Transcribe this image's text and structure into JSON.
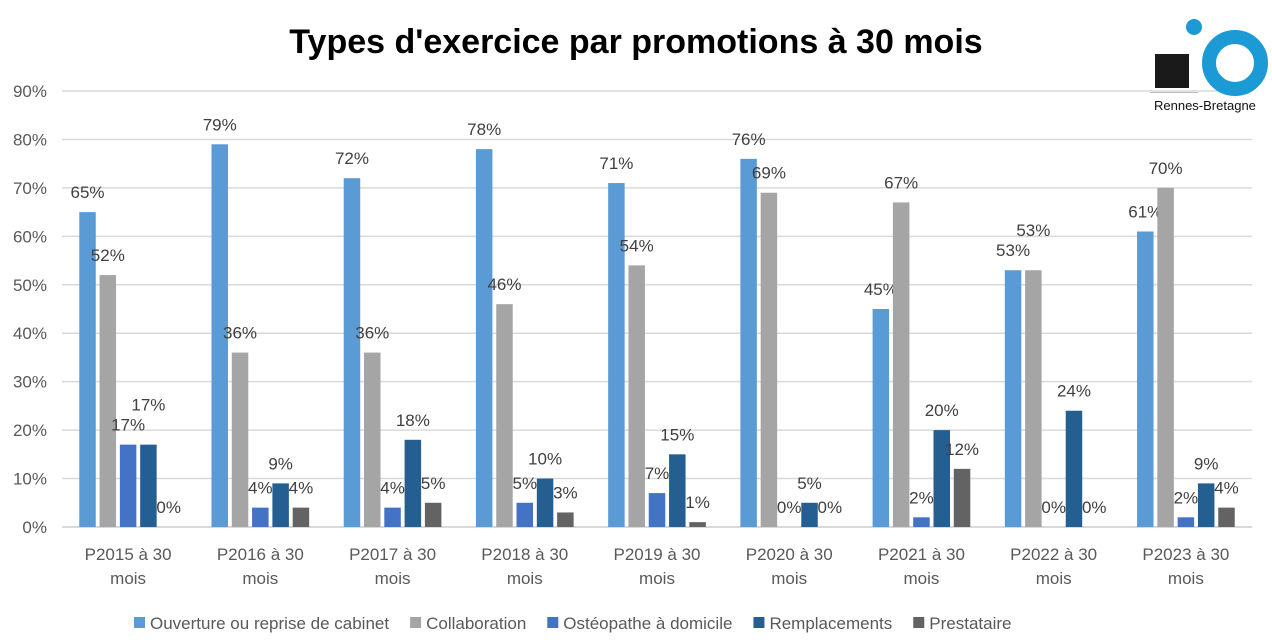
{
  "chart_data": {
    "type": "bar",
    "title": "Types d'exercice par promotions à 30 mois",
    "categories": [
      [
        "P2015 à 30",
        "mois"
      ],
      [
        "P2016 à 30",
        "mois"
      ],
      [
        "P2017 à 30",
        "mois"
      ],
      [
        "P2018 à 30",
        "mois"
      ],
      [
        "P2019 à 30",
        "mois"
      ],
      [
        "P2020 à 30",
        "mois"
      ],
      [
        "P2021 à 30",
        "mois"
      ],
      [
        "P2022 à 30",
        "mois"
      ],
      [
        "P2023 à 30",
        "mois"
      ]
    ],
    "series": [
      {
        "name": "Ouverture ou reprise de cabinet",
        "color": "#5b9bd5",
        "values": [
          65,
          79,
          72,
          78,
          71,
          76,
          45,
          53,
          61
        ]
      },
      {
        "name": "Collaboration",
        "color": "#a5a5a5",
        "values": [
          52,
          36,
          36,
          46,
          54,
          69,
          67,
          53,
          70
        ]
      },
      {
        "name": "Ostéopathe à domicile",
        "color": "#4472c4",
        "values": [
          17,
          4,
          4,
          5,
          7,
          0,
          2,
          0,
          2
        ]
      },
      {
        "name": "Remplacements",
        "color": "#255e91",
        "values": [
          17,
          9,
          18,
          10,
          15,
          5,
          20,
          24,
          9
        ]
      },
      {
        "name": "Prestataire",
        "color": "#636363",
        "values": [
          0,
          4,
          5,
          3,
          1,
          0,
          12,
          0,
          4
        ]
      }
    ],
    "ylim": [
      0,
      90
    ],
    "yticks": [
      "0%",
      "10%",
      "20%",
      "30%",
      "40%",
      "50%",
      "60%",
      "70%",
      "80%",
      "90%"
    ],
    "grid": true,
    "legend": "bottom",
    "data_labels": true
  },
  "logo": {
    "text": "Rennes-Bretagne",
    "colors": {
      "square": "#1a1a1a",
      "circle": "#1b9ad6"
    }
  }
}
